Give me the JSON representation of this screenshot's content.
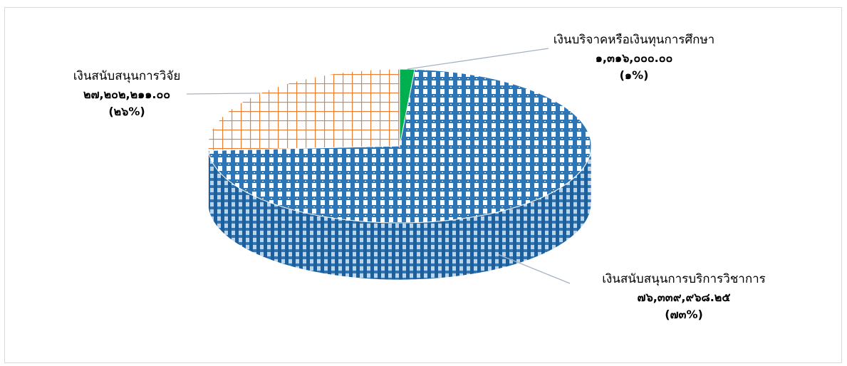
{
  "chart_data": {
    "type": "pie",
    "title": "",
    "slices": [
      {
        "label": "เงินบริจาคหรือเงินทุนการศึกษา",
        "value_text": "๑,๓๑๖,๐๐๐.๐๐",
        "percent_text": "(๑%)",
        "value": 1316000.0,
        "color": "#00b050"
      },
      {
        "label": "เงินสนับสนุนการบริการวิชาการ",
        "value_text": "๗๖,๓๓๙,๙๖๘.๒๕",
        "percent_text": "(๗๓%)",
        "value": 76339968.25,
        "color": "#2e75b6"
      },
      {
        "label": "เงินสนับสนุนการวิจัย",
        "value_text": "๒๗,๒๐๒,๒๑๑.๐๐",
        "percent_text": "(๒๖%)",
        "value": 27202211.0,
        "color": "#ed7d31"
      }
    ],
    "legend": "none",
    "grid": false
  }
}
